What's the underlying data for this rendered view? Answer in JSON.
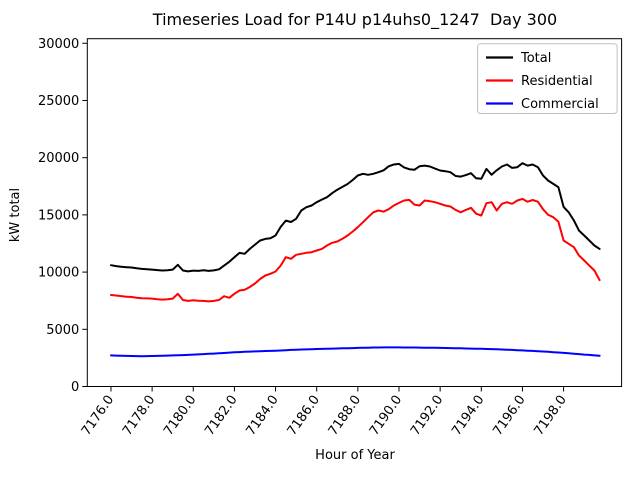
{
  "chart_data": {
    "type": "line",
    "title": "Timeseries Load for P14U p14uhs0_1247  Day 300",
    "xlabel": "Hour of Year",
    "ylabel": "kW total",
    "x_start": 7176.0,
    "x_step": 0.25,
    "xlim": [
      7174.85,
      7200.82
    ],
    "ylim": [
      0,
      30000
    ],
    "grid": false,
    "legend_position": "upper right",
    "x_tick_labels": [
      "7176.0",
      "7178.0",
      "7180.0",
      "7182.0",
      "7184.0",
      "7186.0",
      "7188.0",
      "7190.0",
      "7192.0",
      "7194.0",
      "7196.0",
      "7198.0"
    ],
    "y_tick_labels": [
      "0",
      "5000",
      "10000",
      "15000",
      "20000",
      "25000",
      "30000"
    ],
    "series": [
      {
        "name": "Total",
        "color": "#000000",
        "values": [
          10600,
          10520,
          10470,
          10430,
          10400,
          10330,
          10280,
          10250,
          10220,
          10170,
          10140,
          10160,
          10220,
          10640,
          10140,
          10060,
          10130,
          10100,
          10160,
          10100,
          10150,
          10240,
          10570,
          10900,
          11300,
          11680,
          11600,
          12030,
          12400,
          12760,
          12900,
          12960,
          13200,
          13950,
          14500,
          14380,
          14660,
          15380,
          15670,
          15820,
          16110,
          16340,
          16550,
          16900,
          17200,
          17450,
          17700,
          18050,
          18440,
          18590,
          18500,
          18590,
          18730,
          18900,
          19250,
          19400,
          19460,
          19150,
          18990,
          18940,
          19260,
          19310,
          19230,
          19050,
          18880,
          18820,
          18730,
          18400,
          18350,
          18480,
          18640,
          18200,
          18150,
          19020,
          18500,
          18900,
          19230,
          19400,
          19110,
          19170,
          19520,
          19310,
          19400,
          19170,
          18440,
          18000,
          17710,
          17420,
          15700,
          15230,
          14510,
          13630,
          13200,
          12760,
          12320,
          12030
        ]
      },
      {
        "name": "Residential",
        "color": "#ff0000",
        "values": [
          8000,
          7950,
          7900,
          7850,
          7820,
          7760,
          7720,
          7700,
          7680,
          7630,
          7600,
          7620,
          7680,
          8100,
          7560,
          7480,
          7540,
          7500,
          7480,
          7440,
          7480,
          7560,
          7890,
          7750,
          8100,
          8390,
          8450,
          8700,
          9000,
          9400,
          9700,
          9850,
          10050,
          10570,
          11300,
          11160,
          11510,
          11600,
          11690,
          11740,
          11890,
          12030,
          12320,
          12560,
          12670,
          12910,
          13200,
          13550,
          13920,
          14360,
          14800,
          15230,
          15380,
          15290,
          15500,
          15820,
          16050,
          16260,
          16310,
          15900,
          15820,
          16260,
          16200,
          16110,
          15970,
          15820,
          15730,
          15440,
          15230,
          15440,
          15620,
          15100,
          14950,
          16020,
          16110,
          15380,
          15970,
          16110,
          15970,
          16260,
          16400,
          16150,
          16300,
          16150,
          15500,
          15000,
          14800,
          14400,
          12760,
          12470,
          12180,
          11450,
          11010,
          10570,
          10140,
          9300
        ]
      },
      {
        "name": "Commercial",
        "color": "#0000ff",
        "values": [
          2720,
          2705,
          2690,
          2675,
          2665,
          2655,
          2650,
          2655,
          2665,
          2675,
          2685,
          2700,
          2715,
          2730,
          2745,
          2765,
          2785,
          2805,
          2830,
          2855,
          2880,
          2905,
          2930,
          2960,
          2985,
          3010,
          3030,
          3050,
          3070,
          3085,
          3100,
          3115,
          3130,
          3150,
          3170,
          3195,
          3215,
          3230,
          3245,
          3260,
          3275,
          3290,
          3300,
          3315,
          3325,
          3335,
          3350,
          3360,
          3370,
          3385,
          3395,
          3405,
          3410,
          3415,
          3420,
          3420,
          3415,
          3412,
          3408,
          3405,
          3400,
          3395,
          3388,
          3380,
          3372,
          3363,
          3355,
          3345,
          3335,
          3325,
          3315,
          3305,
          3295,
          3280,
          3265,
          3250,
          3235,
          3215,
          3195,
          3175,
          3155,
          3130,
          3108,
          3085,
          3060,
          3030,
          3000,
          2970,
          2935,
          2900,
          2865,
          2830,
          2790,
          2760,
          2720,
          2680
        ]
      }
    ]
  }
}
